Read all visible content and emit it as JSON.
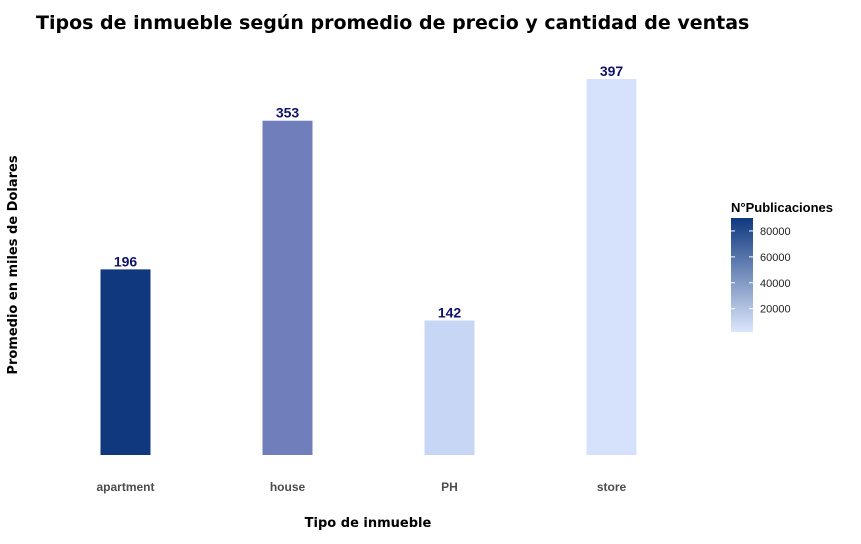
{
  "chart_data": {
    "type": "bar",
    "title": "Tipos de inmueble según promedio de precio y cantidad de ventas",
    "xlabel": "Tipo de inmueble",
    "ylabel": "Promedio en miles de Dolares",
    "categories": [
      "apartment",
      "house",
      "PH",
      "store"
    ],
    "values": [
      196,
      353,
      142,
      397
    ],
    "data_labels": [
      "196",
      "353",
      "142",
      "397"
    ],
    "fill_values": [
      85000,
      45000,
      12000,
      2000
    ],
    "ylim": [
      0,
      420
    ],
    "y_axis_visible": false,
    "grid": false,
    "legend": {
      "title": "N°Publicaciones",
      "position": "right",
      "ticks": [
        "80000",
        "60000",
        "40000",
        "20000"
      ],
      "tick_values": [
        80000,
        60000,
        40000,
        20000
      ],
      "range": [
        2000,
        90000
      ],
      "low_color": "#dce6fb",
      "high_color": "#0f387f"
    },
    "bar_colors": [
      "#0f387f",
      "#707fbb",
      "#c8d6f6",
      "#d6e2fb"
    ],
    "label_color": "#10136b"
  }
}
